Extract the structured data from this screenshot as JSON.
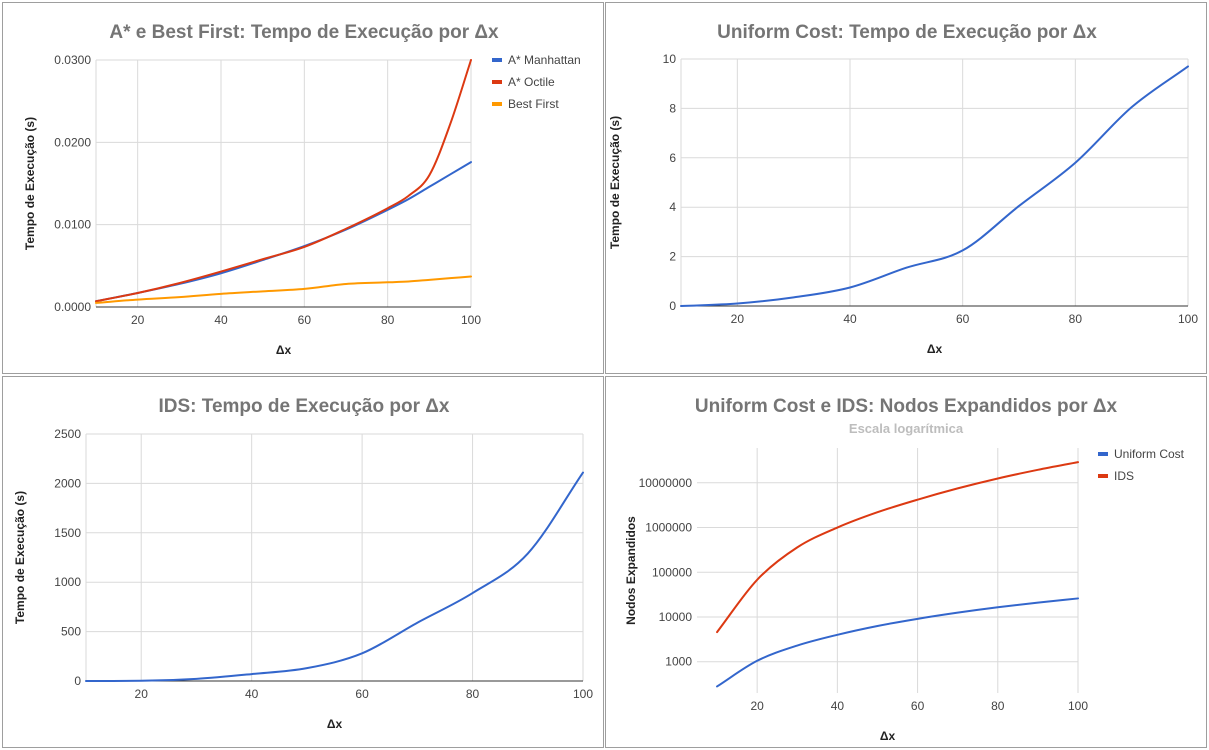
{
  "chart_data": [
    {
      "type": "line",
      "title": "A* e Best First: Tempo de Execução por Δx",
      "xlabel": "Δx",
      "ylabel": "Tempo de Execução (s)",
      "xlim": [
        10,
        100
      ],
      "ylim": [
        0,
        0.03
      ],
      "xticks": [
        20,
        40,
        60,
        80,
        100
      ],
      "yticks": [
        0,
        0.01,
        0.02,
        0.03
      ],
      "ytick_labels": [
        "0.0000",
        "0.0100",
        "0.0200",
        "0.0300"
      ],
      "grid": true,
      "legend": "right",
      "x": [
        10,
        20,
        30,
        40,
        50,
        60,
        70,
        80,
        85,
        90,
        95,
        100
      ],
      "series": [
        {
          "name": "A* Manhattan",
          "color": "#3366cc",
          "values": [
            0.0007,
            0.0017,
            0.0028,
            0.0041,
            0.0057,
            0.0074,
            0.0094,
            0.0118,
            0.0131,
            0.0146,
            0.0161,
            0.0176
          ]
        },
        {
          "name": "A* Octile",
          "color": "#dc3912",
          "values": [
            0.0007,
            0.0017,
            0.0029,
            0.0043,
            0.0058,
            0.0073,
            0.0095,
            0.012,
            0.0135,
            0.016,
            0.0222,
            0.03
          ]
        },
        {
          "name": "Best First",
          "color": "#ff9900",
          "values": [
            0.0005,
            0.0009,
            0.0012,
            0.0016,
            0.0019,
            0.0022,
            0.0028,
            0.003,
            0.0031,
            0.0033,
            0.0035,
            0.0037
          ]
        }
      ]
    },
    {
      "type": "line",
      "title": "Uniform Cost: Tempo de Execução por Δx",
      "xlabel": "Δx",
      "ylabel": "Tempo de Execução (s)",
      "xlim": [
        10,
        100
      ],
      "ylim": [
        0,
        10
      ],
      "xticks": [
        20,
        40,
        60,
        80,
        100
      ],
      "yticks": [
        0,
        2,
        4,
        6,
        8,
        10
      ],
      "ytick_labels": [
        "0",
        "2",
        "4",
        "6",
        "8",
        "10"
      ],
      "grid": true,
      "legend": "none",
      "x": [
        10,
        20,
        30,
        40,
        50,
        60,
        70,
        80,
        90,
        100
      ],
      "series": [
        {
          "name": "",
          "color": "#3366cc",
          "values": [
            0.0,
            0.1,
            0.35,
            0.75,
            1.55,
            2.25,
            4.05,
            5.8,
            8.05,
            9.7
          ]
        }
      ]
    },
    {
      "type": "line",
      "title": "IDS: Tempo de Execução por Δx",
      "xlabel": "Δx",
      "ylabel": "Tempo de Execução (s)",
      "xlim": [
        10,
        100
      ],
      "ylim": [
        0,
        2500
      ],
      "xticks": [
        20,
        40,
        60,
        80,
        100
      ],
      "yticks": [
        0,
        500,
        1000,
        1500,
        2000,
        2500
      ],
      "ytick_labels": [
        "0",
        "500",
        "1000",
        "1500",
        "2000",
        "2500"
      ],
      "grid": true,
      "legend": "none",
      "x": [
        10,
        20,
        30,
        40,
        50,
        60,
        70,
        80,
        90,
        100
      ],
      "series": [
        {
          "name": "",
          "color": "#3366cc",
          "values": [
            0,
            2,
            22,
            70,
            130,
            280,
            590,
            890,
            1290,
            2110
          ]
        }
      ]
    },
    {
      "type": "line",
      "title": "Uniform Cost e IDS: Nodos Expandidos por Δx",
      "subtitle": "Escala logarítmica",
      "xlabel": "Δx",
      "ylabel": "Nodos Expandidos",
      "xscale": "linear",
      "yscale": "log",
      "xlim": [
        5,
        100
      ],
      "ylim": [
        200,
        60000000
      ],
      "xticks": [
        20,
        40,
        60,
        80,
        100
      ],
      "yticks": [
        1000,
        10000,
        100000,
        1000000,
        10000000
      ],
      "ytick_labels": [
        "1000",
        "10000",
        "100000",
        "1000000",
        "10000000"
      ],
      "grid": true,
      "legend": "right",
      "x": [
        10,
        20,
        30,
        40,
        50,
        60,
        70,
        80,
        90,
        100
      ],
      "series": [
        {
          "name": "Uniform Cost",
          "color": "#3366cc",
          "values": [
            280,
            1050,
            2300,
            4000,
            6300,
            9100,
            12500,
            16500,
            21000,
            26000
          ]
        },
        {
          "name": "IDS",
          "color": "#dc3912",
          "values": [
            4600,
            68000,
            360000,
            1000000,
            2200000,
            4200000,
            7500000,
            12500000,
            19500000,
            29000000
          ]
        }
      ]
    }
  ]
}
